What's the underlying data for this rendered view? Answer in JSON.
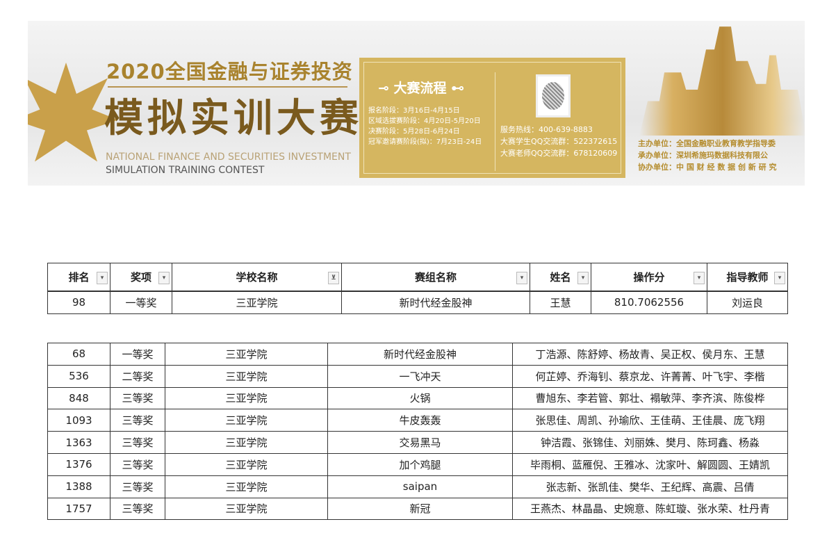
{
  "banner": {
    "title_line1": "2020全国金融与证券投资",
    "title_line2": "模拟实训大赛",
    "english_line1": "NATIONAL FINANCE AND SECURITIES INVESTMENT",
    "english_line2": "SIMULATION TRAINING CONTEST",
    "flow_title": "大赛流程",
    "stages": [
      "报名阶段：3月16日-4月15日",
      "区域选拔赛阶段：4月20日-5月20日",
      "决赛阶段：5月28日-6月24日",
      "冠军邀请赛阶段(拟)：7月23日-24日"
    ],
    "contacts": [
      "服务热线：400-639-8883",
      "大赛学生QQ交流群：522372615",
      "大赛老师QQ交流群：678120609"
    ],
    "orgs": [
      "主办单位：全国金融职业教育教学指导委",
      "承办单位：深圳希施玛数据科技有限公",
      "协办单位：中 国 财 经 数 据 创 新 研 究"
    ],
    "colors": {
      "gold": "#d5b660",
      "title": "#7a5a1e"
    }
  },
  "table1": {
    "headers": [
      "排名",
      "奖项",
      "学校名称",
      "赛组名称",
      "姓名",
      "操作分",
      "指导教师"
    ],
    "row": [
      "98",
      "一等奖",
      "三亚学院",
      "新时代经金股神",
      "王慧",
      "810.7062556",
      "刘运良"
    ]
  },
  "table2": {
    "rows": [
      [
        "68",
        "一等奖",
        "三亚学院",
        "新时代经金股神",
        "丁浩源、陈舒婷、杨故青、吴正权、侯月东、王慧"
      ],
      [
        "536",
        "二等奖",
        "三亚学院",
        "一飞冲天",
        "何芷婷、乔海钊、蔡京龙、许菁菁、叶飞宇、李楷"
      ],
      [
        "848",
        "三等奖",
        "三亚学院",
        "火锅",
        "曹旭东、李若管、郭壮、褟敏萍、李齐滨、陈俊桦"
      ],
      [
        "1093",
        "三等奖",
        "三亚学院",
        "牛皮轰轰",
        "张思佳、周凯、孙瑜欣、王佳萌、王佳晨、庞飞翔"
      ],
      [
        "1363",
        "三等奖",
        "三亚学院",
        "交易黑马",
        "钟洁霞、张锦佳、刘丽姝、樊月、陈珂鑫、杨淼"
      ],
      [
        "1376",
        "三等奖",
        "三亚学院",
        "加个鸡腿",
        "毕雨桐、蓝雁倪、王雅冰、沈家叶、解圆圆、王婧凯"
      ],
      [
        "1388",
        "三等奖",
        "三亚学院",
        "saipan",
        "张志新、张凯佳、樊华、王纪辉、高震、吕倩"
      ],
      [
        "1757",
        "三等奖",
        "三亚学院",
        "新冠",
        "王燕杰、林晶晶、史婉意、陈虹璇、张水荣、杜丹青"
      ]
    ]
  }
}
